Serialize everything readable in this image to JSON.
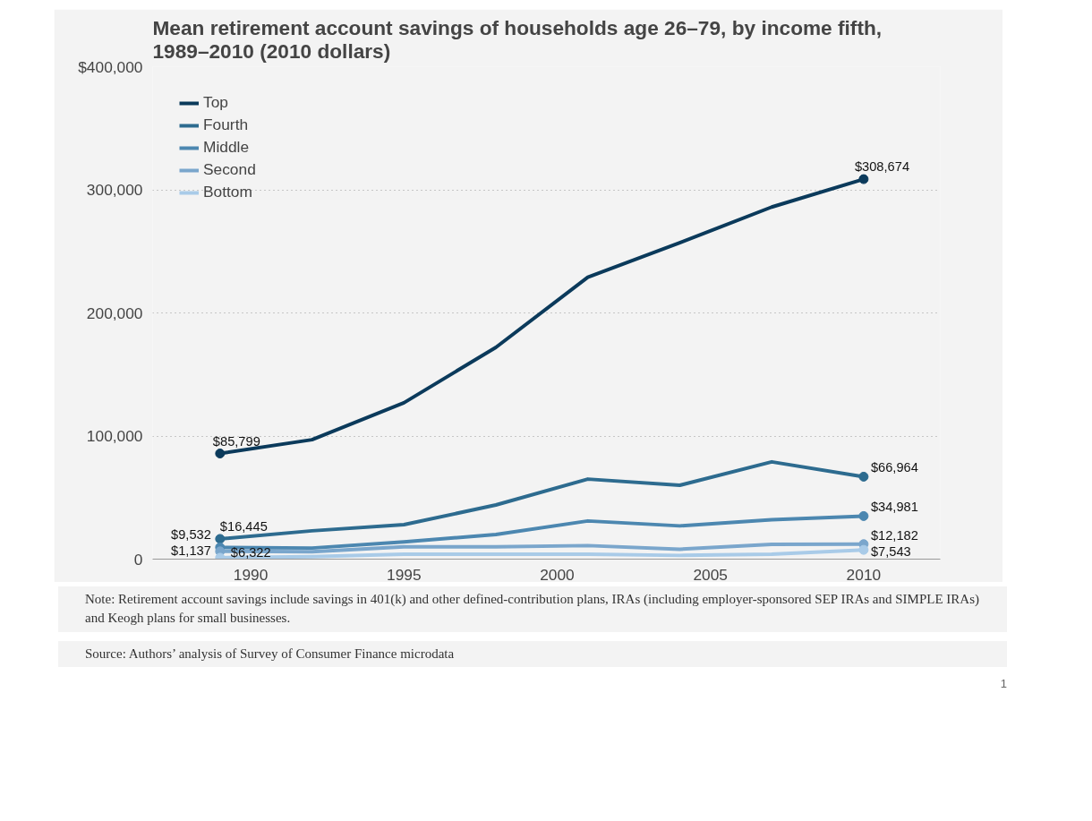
{
  "chart_data": {
    "type": "line",
    "title": "Mean retirement account savings of households age 26–79, by income fifth, 1989–2010 (2010 dollars)",
    "x": [
      1989,
      1992,
      1995,
      1998,
      2001,
      2004,
      2007,
      2010
    ],
    "series": [
      {
        "name": "Top",
        "color": "#0b3a5b",
        "values": [
          85799,
          97000,
          127000,
          172000,
          229000,
          257000,
          286000,
          308674
        ],
        "value_labels": [
          "$85,799",
          null,
          null,
          null,
          null,
          null,
          null,
          "$308,674"
        ]
      },
      {
        "name": "Fourth",
        "color": "#2d6b8f",
        "values": [
          16445,
          23000,
          28000,
          44000,
          65000,
          60000,
          79000,
          66964
        ],
        "value_labels": [
          "$16,445",
          null,
          null,
          null,
          null,
          null,
          null,
          "$66,964"
        ]
      },
      {
        "name": "Middle",
        "color": "#4c87b0",
        "values": [
          9532,
          9000,
          14000,
          20000,
          31000,
          27000,
          32000,
          34981
        ],
        "value_labels": [
          "$9,532",
          null,
          null,
          null,
          null,
          null,
          null,
          "$34,981"
        ]
      },
      {
        "name": "Second",
        "color": "#7aa6cc",
        "values": [
          6322,
          6000,
          10000,
          10000,
          11000,
          8000,
          12000,
          12182
        ],
        "value_labels": [
          "$6,322",
          null,
          null,
          null,
          null,
          null,
          null,
          "$12,182"
        ]
      },
      {
        "name": "Bottom",
        "color": "#a9cbe8",
        "values": [
          1137,
          2000,
          4000,
          4000,
          4000,
          3000,
          4000,
          7543
        ],
        "value_labels": [
          "$1,137",
          null,
          null,
          null,
          null,
          null,
          null,
          "$7,543"
        ]
      }
    ],
    "xlim": [
      1986.8,
      2012.5
    ],
    "xticks": [
      1990,
      1995,
      2000,
      2005,
      2010
    ],
    "ylim": [
      0,
      400000
    ],
    "yticks": [
      {
        "value": 0,
        "label": "0"
      },
      {
        "value": 100000,
        "label": "100,000"
      },
      {
        "value": 200000,
        "label": "200,000"
      },
      {
        "value": 300000,
        "label": "300,000"
      },
      {
        "value": 400000,
        "label": "$400,000"
      }
    ],
    "grid": "y",
    "legend": "top left",
    "line_style": "solid",
    "annotations": [
      "Note: Retirement account savings include savings in 401(k) and other defined-contribution plans, IRAs (including employer-sponsored SEP IRAs and SIMPLE IRAs) and Keogh plans for small businesses.",
      "Source: Authors’ analysis of Survey of Consumer Finance microdata",
      "1"
    ]
  }
}
